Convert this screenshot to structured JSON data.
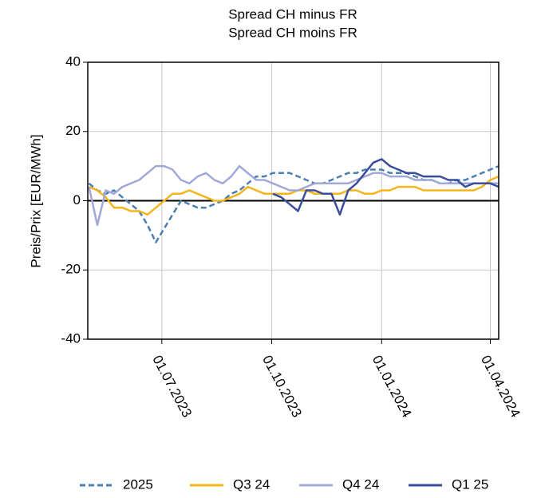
{
  "chart_data": {
    "type": "line",
    "title": "Spread CH minus FR",
    "subtitle": "Spread CH moins FR",
    "y_label": "Preis/Prix [EUR/MWh]",
    "x": [
      "2023-05-01",
      "2023-05-08",
      "2023-05-15",
      "2023-05-22",
      "2023-05-29",
      "2023-06-05",
      "2023-06-12",
      "2023-06-19",
      "2023-06-26",
      "2023-07-03",
      "2023-07-10",
      "2023-07-17",
      "2023-07-24",
      "2023-07-31",
      "2023-08-07",
      "2023-08-14",
      "2023-08-21",
      "2023-08-28",
      "2023-09-04",
      "2023-09-11",
      "2023-09-18",
      "2023-09-25",
      "2023-10-02",
      "2023-10-09",
      "2023-10-16",
      "2023-10-23",
      "2023-10-30",
      "2023-11-06",
      "2023-11-13",
      "2023-11-20",
      "2023-11-27",
      "2023-12-04",
      "2023-12-11",
      "2023-12-18",
      "2023-12-25",
      "2024-01-01",
      "2024-01-08",
      "2024-01-15",
      "2024-01-22",
      "2024-01-29",
      "2024-02-05",
      "2024-02-12",
      "2024-02-19",
      "2024-02-26",
      "2024-03-04",
      "2024-03-11",
      "2024-03-18",
      "2024-03-25",
      "2024-04-01",
      "2024-04-08"
    ],
    "series": [
      {
        "name": "2025",
        "color": "#4a7fb0",
        "linestyle": "dashed",
        "values": [
          5,
          3,
          2,
          3,
          1,
          -1,
          -3,
          -7,
          -12,
          -8,
          -4,
          0,
          -1,
          -2,
          -2,
          -1,
          0,
          2,
          3,
          5,
          7,
          7,
          8,
          8,
          8,
          7,
          6,
          5,
          5,
          6,
          7,
          8,
          8,
          9,
          9,
          9,
          8,
          8,
          8,
          7,
          6,
          6,
          5,
          5,
          6,
          6,
          7,
          8,
          9,
          10
        ]
      },
      {
        "name": "Q3 24",
        "color": "#f5b51a",
        "linestyle": "solid",
        "values": [
          4,
          3,
          1,
          -2,
          -2,
          -3,
          -3,
          -4,
          -2,
          0,
          2,
          2,
          3,
          2,
          1,
          0,
          0,
          1,
          2,
          4,
          3,
          2,
          2,
          2,
          2,
          3,
          3,
          2,
          2,
          2,
          2,
          3,
          3,
          2,
          2,
          3,
          3,
          4,
          4,
          4,
          3,
          3,
          3,
          3,
          3,
          3,
          3,
          4,
          6,
          7
        ]
      },
      {
        "name": "Q4 24",
        "color": "#a0a8d8",
        "linestyle": "solid",
        "values": [
          4,
          -7,
          3,
          2,
          4,
          5,
          6,
          8,
          10,
          10,
          9,
          6,
          5,
          7,
          8,
          6,
          5,
          7,
          10,
          8,
          6,
          6,
          5,
          4,
          3,
          3,
          4,
          5,
          5,
          5,
          5,
          5,
          6,
          7,
          8,
          8,
          7,
          7,
          7,
          6,
          6,
          6,
          5,
          5,
          5,
          5,
          5,
          5,
          5,
          5
        ]
      },
      {
        "name": "Q1 25",
        "color": "#3a4d9a",
        "linestyle": "solid",
        "values": [
          null,
          null,
          null,
          null,
          null,
          null,
          null,
          null,
          null,
          null,
          null,
          null,
          null,
          null,
          null,
          null,
          null,
          null,
          null,
          null,
          null,
          null,
          2,
          1,
          -1,
          -3,
          3,
          3,
          2,
          2,
          -4,
          3,
          5,
          8,
          11,
          12,
          10,
          9,
          8,
          8,
          7,
          7,
          7,
          6,
          6,
          4,
          5,
          5,
          5,
          4
        ]
      }
    ],
    "xlim": [
      "2023-04-30",
      "2024-04-08"
    ],
    "xticks": [
      {
        "value": "2023-07-01",
        "label": "01.07.2023"
      },
      {
        "value": "2023-10-01",
        "label": "01.10.2023"
      },
      {
        "value": "2024-01-01",
        "label": "01.01.2024"
      },
      {
        "value": "2024-04-01",
        "label": "01.04.2024"
      }
    ],
    "ylim": [
      -40,
      40
    ],
    "yticks": [
      -40,
      -20,
      0,
      20,
      40
    ],
    "hline": 0,
    "grid": true,
    "legend": "bottom"
  }
}
